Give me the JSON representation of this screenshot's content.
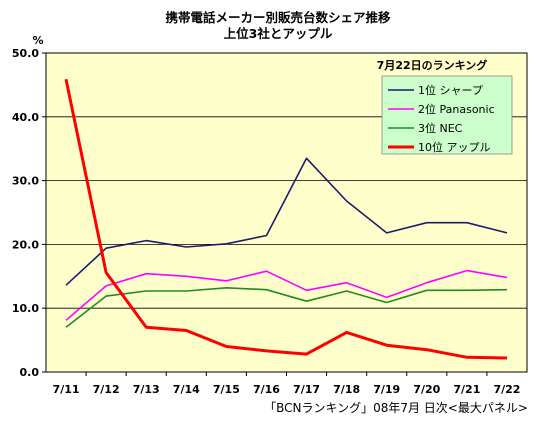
{
  "chart_data": {
    "type": "line",
    "title": "携帯電話メーカー別販売台数シェア推移",
    "subtitle": "上位3社とアップル",
    "ylabel": "%",
    "ylim": [
      0,
      50
    ],
    "yticks": [
      "0.0",
      "10.0",
      "20.0",
      "30.0",
      "40.0",
      "50.0"
    ],
    "categories": [
      "7/11",
      "7/12",
      "7/13",
      "7/14",
      "7/15",
      "7/16",
      "7/17",
      "7/18",
      "7/19",
      "7/20",
      "7/21",
      "7/22"
    ],
    "legend_title": "7月22日のランキング",
    "legend_position": "top-right",
    "grid": true,
    "series": [
      {
        "name": "1位 シャープ",
        "color": "#1c1c6e",
        "width": 1.6,
        "values": [
          13.6,
          19.4,
          20.6,
          19.6,
          20.1,
          21.4,
          33.5,
          26.8,
          21.8,
          23.4,
          23.4,
          21.8
        ]
      },
      {
        "name": "2位 Panasonic",
        "color": "#ff00ff",
        "width": 1.6,
        "values": [
          8.1,
          13.5,
          15.4,
          15.0,
          14.3,
          15.8,
          12.8,
          14.0,
          11.7,
          14.0,
          15.9,
          14.8
        ]
      },
      {
        "name": "3位 NEC",
        "color": "#228b22",
        "width": 1.6,
        "values": [
          7.0,
          11.9,
          12.7,
          12.7,
          13.2,
          12.9,
          11.1,
          12.7,
          10.9,
          12.8,
          12.8,
          12.9
        ]
      },
      {
        "name": "10位 アップル",
        "color": "#ff0000",
        "width": 3,
        "values": [
          45.9,
          15.6,
          7.0,
          6.5,
          4.0,
          3.3,
          2.8,
          6.2,
          4.2,
          3.5,
          2.3,
          2.2
        ]
      }
    ],
    "footer": "「BCNランキング」08年7月 日次<最大パネル>",
    "plot_background": "#ffffcc"
  }
}
